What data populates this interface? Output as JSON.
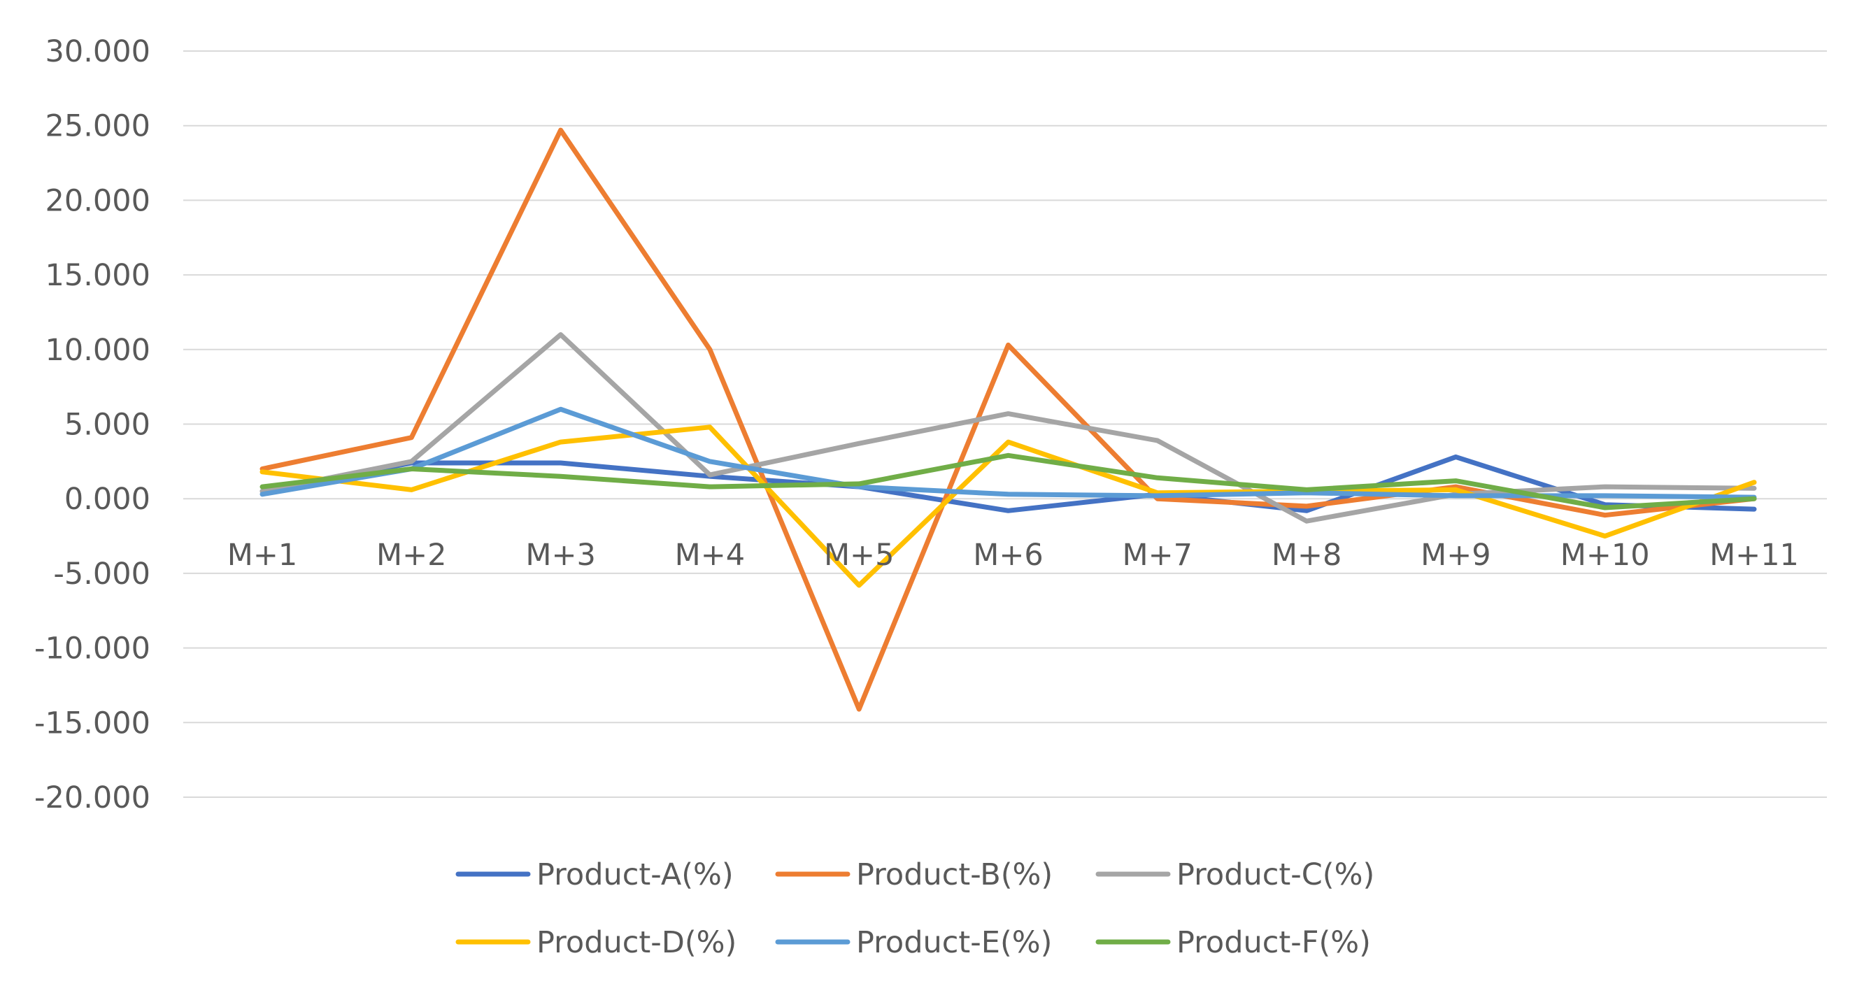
{
  "chart_data": {
    "type": "line",
    "title": "",
    "xlabel": "",
    "ylabel": "",
    "categories": [
      "M+1",
      "M+2",
      "M+3",
      "M+4",
      "M+5",
      "M+6",
      "M+7",
      "M+8",
      "M+9",
      "M+10",
      "M+11"
    ],
    "ylim": [
      -20,
      30
    ],
    "ytick_values": [
      30,
      25,
      20,
      15,
      10,
      5,
      0,
      -5,
      -10,
      -15,
      -20
    ],
    "ytick_labels": [
      "30.000",
      "25.000",
      "20.000",
      "15.000",
      "10.000",
      "5.000",
      "0.000",
      "-5.000",
      "-10.000",
      "-15.000",
      "-20.000"
    ],
    "grid": true,
    "legend_position": "bottom",
    "series": [
      {
        "name": "Product-A(%)",
        "color": "#4472c4",
        "values": [
          0.5,
          2.4,
          2.4,
          1.5,
          0.8,
          -0.8,
          0.3,
          -0.8,
          2.8,
          -0.4,
          -0.7
        ]
      },
      {
        "name": "Product-B(%)",
        "color": "#ed7d31",
        "values": [
          2.0,
          4.1,
          24.7,
          10.0,
          -14.1,
          10.3,
          0.0,
          -0.5,
          0.8,
          -1.1,
          0.0
        ]
      },
      {
        "name": "Product-C(%)",
        "color": "#a5a5a5",
        "values": [
          0.5,
          2.5,
          11.0,
          1.6,
          3.7,
          5.7,
          3.9,
          -1.5,
          0.3,
          0.8,
          0.7
        ]
      },
      {
        "name": "Product-D(%)",
        "color": "#ffc000",
        "values": [
          1.8,
          0.6,
          3.8,
          4.8,
          -5.8,
          3.8,
          0.4,
          0.5,
          0.6,
          -2.5,
          1.1
        ]
      },
      {
        "name": "Product-E(%)",
        "color": "#5b9bd5",
        "values": [
          0.3,
          2.0,
          6.0,
          2.5,
          0.8,
          0.3,
          0.2,
          0.4,
          0.2,
          0.2,
          0.1
        ]
      },
      {
        "name": "Product-F(%)",
        "color": "#70ad47",
        "values": [
          0.8,
          2.0,
          1.5,
          0.8,
          1.0,
          2.9,
          1.4,
          0.6,
          1.2,
          -0.6,
          0.0
        ]
      }
    ]
  }
}
